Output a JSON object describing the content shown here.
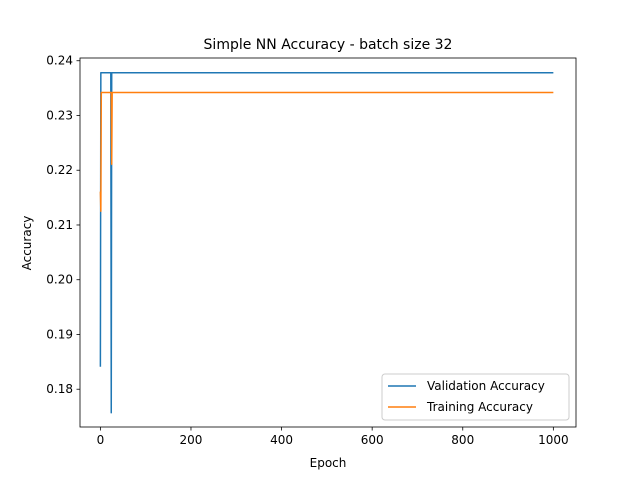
{
  "chart_data": {
    "type": "line",
    "title": "Simple NN Accuracy - batch size 32",
    "xlabel": "Epoch",
    "ylabel": "Accuracy",
    "xlim": [
      -45,
      1050
    ],
    "ylim": [
      0.1731,
      0.2405
    ],
    "xticks": [
      0,
      200,
      400,
      600,
      800,
      1000
    ],
    "yticks": [
      0.18,
      0.19,
      0.2,
      0.21,
      0.22,
      0.23,
      0.24
    ],
    "ytick_labels": [
      "0.18",
      "0.19",
      "0.20",
      "0.21",
      "0.22",
      "0.23",
      "0.24"
    ],
    "grid": false,
    "legend_position": "lower-right",
    "series": [
      {
        "name": "Validation Accuracy",
        "color": "#1f77b4",
        "x": [
          0,
          1,
          2,
          23,
          24,
          25,
          26,
          27,
          1000
        ],
        "y": [
          0.1841,
          0.2378,
          0.2378,
          0.2378,
          0.1757,
          0.2378,
          0.2378,
          0.2378,
          0.2378
        ]
      },
      {
        "name": "Training Accuracy",
        "color": "#ff7f0e",
        "x": [
          0,
          1,
          2,
          3,
          24,
          25,
          26,
          27,
          1000
        ],
        "y": [
          0.2161,
          0.2125,
          0.2342,
          0.2342,
          0.2342,
          0.2211,
          0.2342,
          0.2342,
          0.2342
        ]
      }
    ]
  }
}
